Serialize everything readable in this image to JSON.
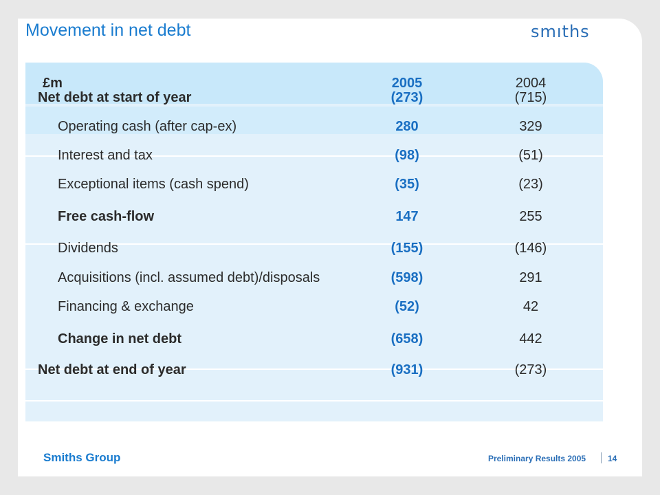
{
  "slide": {
    "title": "Movement in net debt",
    "logo": "smıths"
  },
  "table": {
    "header": {
      "unit": "£m",
      "col_2005": "2005",
      "col_2004": "2004"
    },
    "rows": [
      {
        "label": "Net debt at start of year",
        "v2005": "(273)",
        "v2004": "(715)",
        "bold": true,
        "indent": false
      },
      {
        "label": "Operating cash (after cap-ex)",
        "v2005": "280",
        "v2004": "329",
        "bold": false,
        "indent": true
      },
      {
        "label": "Interest and tax",
        "v2005": "(98)",
        "v2004": "(51)",
        "bold": false,
        "indent": true
      },
      {
        "label": "Exceptional items (cash spend)",
        "v2005": "(35)",
        "v2004": "(23)",
        "bold": false,
        "indent": true
      },
      {
        "label": "Free cash-flow",
        "v2005": "147",
        "v2004": "255",
        "bold": true,
        "indent": true
      },
      {
        "label": "Dividends",
        "v2005": "(155)",
        "v2004": "(146)",
        "bold": false,
        "indent": true
      },
      {
        "label": "Acquisitions (incl. assumed debt)/disposals",
        "v2005": "(598)",
        "v2004": "291",
        "bold": false,
        "indent": true
      },
      {
        "label": "Financing & exchange",
        "v2005": "(52)",
        "v2004": "42",
        "bold": false,
        "indent": true
      },
      {
        "label": "Change in net debt",
        "v2005": "(658)",
        "v2004": "442",
        "bold": true,
        "indent": true
      },
      {
        "label": "Net debt at end of year",
        "v2005": "(931)",
        "v2004": "(273)",
        "bold": true,
        "indent": false
      }
    ]
  },
  "footer": {
    "company": "Smiths Group",
    "event": "Preliminary Results 2005",
    "page": "14"
  },
  "colors": {
    "accent": "#1a7ccf",
    "band": "#e2f1fb",
    "header_band": "#c8e8fa"
  }
}
